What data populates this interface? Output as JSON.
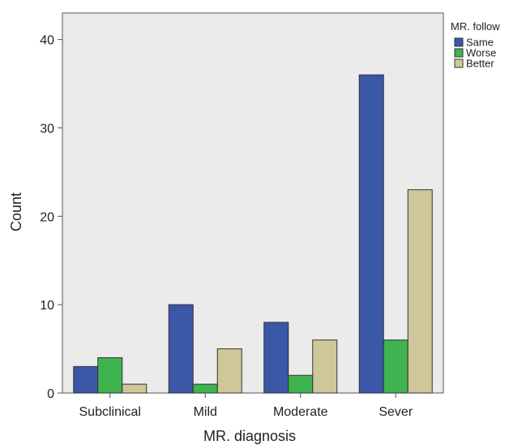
{
  "chart_data": {
    "type": "bar",
    "title": "",
    "xlabel": "MR. diagnosis",
    "ylabel": "Count",
    "categories": [
      "Subclinical",
      "Mild",
      "Moderate",
      "Sever"
    ],
    "series": [
      {
        "name": "Same",
        "values": [
          3,
          10,
          8,
          36
        ],
        "color": "#3a57a8"
      },
      {
        "name": "Worse",
        "values": [
          4,
          1,
          2,
          6
        ],
        "color": "#3fb34f"
      },
      {
        "name": "Better",
        "values": [
          1,
          5,
          6,
          23
        ],
        "color": "#cfc799"
      }
    ],
    "ylim": [
      0,
      43
    ],
    "yticks": [
      0,
      10,
      20,
      30,
      40
    ],
    "legend_title": "MR. follow",
    "legend_position": "right",
    "grid": false,
    "plot_background": "#ebebeb"
  }
}
